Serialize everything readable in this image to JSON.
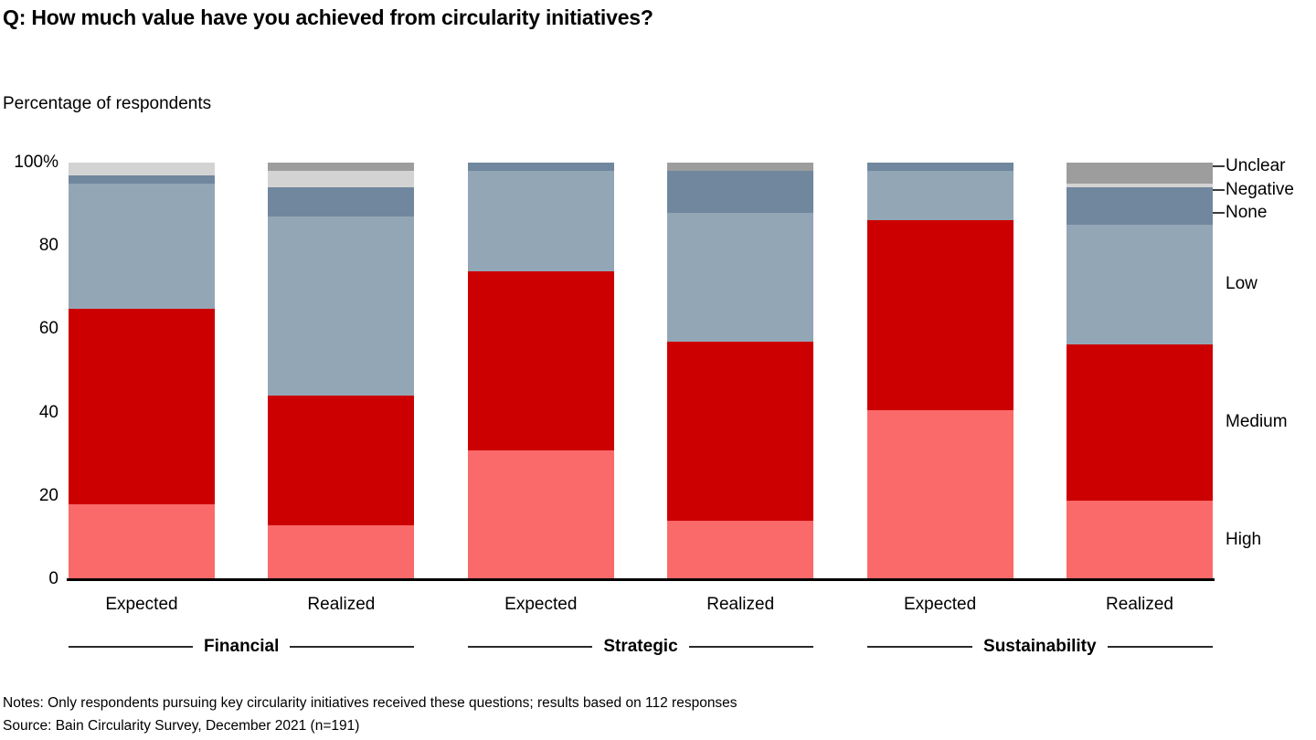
{
  "title": "Q: How much value have you achieved from circularity initiatives?",
  "y_axis": {
    "title": "Percentage of respondents",
    "ticks": [
      {
        "value": 100,
        "label": "100%"
      },
      {
        "value": 80,
        "label": "80"
      },
      {
        "value": 60,
        "label": "60"
      },
      {
        "value": 40,
        "label": "40"
      },
      {
        "value": 20,
        "label": "20"
      },
      {
        "value": 0,
        "label": "0"
      }
    ]
  },
  "chart_data": {
    "type": "bar",
    "stacked": true,
    "unit": "%",
    "title": "Q: How much value have you achieved from circularity initiatives?",
    "ylabel": "Percentage of respondents",
    "ylim": [
      0,
      100
    ],
    "grid": false,
    "legend_position": "right",
    "categories": [
      "Expected",
      "Realized",
      "Expected",
      "Realized",
      "Expected",
      "Realized"
    ],
    "groups": [
      {
        "label": "Financial",
        "first_bar": 0,
        "last_bar": 1
      },
      {
        "label": "Strategic",
        "first_bar": 2,
        "last_bar": 3
      },
      {
        "label": "Sustainability",
        "first_bar": 4,
        "last_bar": 5
      }
    ],
    "series": [
      {
        "name": "High",
        "color": "#fb6a6a",
        "values": [
          18,
          13,
          31,
          14,
          41,
          19
        ]
      },
      {
        "name": "Medium",
        "color": "#cc0000",
        "values": [
          47,
          31,
          43,
          43,
          46,
          38
        ]
      },
      {
        "name": "Low",
        "color": "#93a6b6",
        "values": [
          30,
          43,
          24,
          31,
          12,
          29
        ]
      },
      {
        "name": "None",
        "color": "#70879e",
        "values": [
          2,
          7,
          2,
          10,
          2,
          9
        ]
      },
      {
        "name": "Negative",
        "color": "#d3d3d3",
        "values": [
          3,
          4,
          0,
          0,
          0,
          1
        ]
      },
      {
        "name": "Unclear",
        "color": "#9d9d9d",
        "values": [
          0,
          2,
          0,
          2,
          0,
          5
        ]
      }
    ]
  },
  "legend": {
    "items": [
      "Unclear",
      "Negative",
      "None",
      "Low",
      "Medium",
      "High"
    ]
  },
  "footer": {
    "notes": "Notes: Only respondents pursuing key circularity initiatives received these questions; results based on 112 responses",
    "source": "Source: Bain Circularity Survey, December 2021 (n=191)"
  }
}
